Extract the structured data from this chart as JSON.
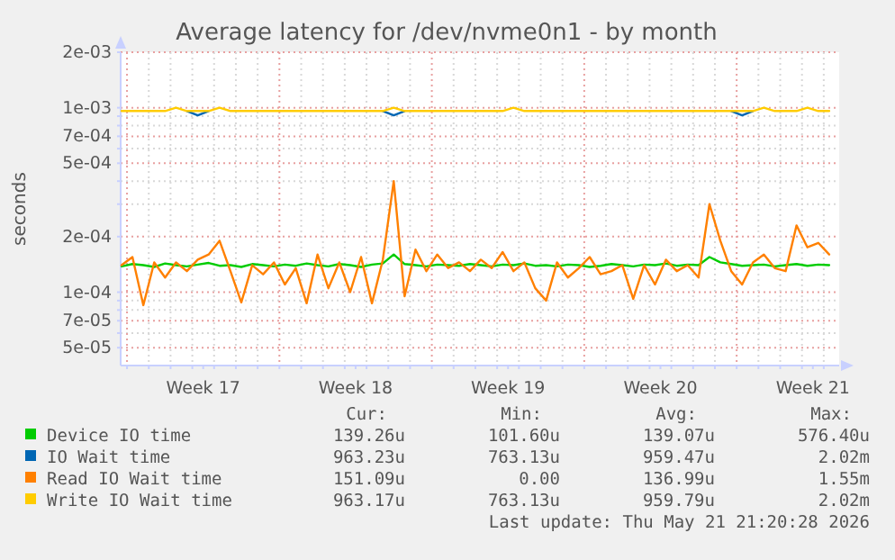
{
  "chart_data": {
    "type": "line",
    "title": "Average latency for /dev/nvme0n1 - by month",
    "ylabel": "seconds",
    "log": "y",
    "grid": true,
    "legend": "bottom",
    "marker": "none",
    "line_style": "solid",
    "xlim": [
      "2026-04-19T17:00",
      "2026-05-22T17:00"
    ],
    "ylim": [
      4e-05,
      0.002
    ],
    "yticks": [
      {
        "value": 0.002,
        "label": "2e-03"
      },
      {
        "value": 0.001,
        "label": "1e-03"
      },
      {
        "value": 0.0009,
        "label": null
      },
      {
        "value": 0.0008,
        "label": null
      },
      {
        "value": 0.0007,
        "label": "7e-04"
      },
      {
        "value": 0.0006,
        "label": null
      },
      {
        "value": 0.0005,
        "label": "5e-04"
      },
      {
        "value": 0.0004,
        "label": null
      },
      {
        "value": 0.0003,
        "label": null
      },
      {
        "value": 0.0002,
        "label": "2e-04"
      },
      {
        "value": 0.0001,
        "label": "1e-04"
      },
      {
        "value": 9e-05,
        "label": null
      },
      {
        "value": 8e-05,
        "label": null
      },
      {
        "value": 7e-05,
        "label": "7e-05"
      },
      {
        "value": 6e-05,
        "label": null
      },
      {
        "value": 5e-05,
        "label": "5e-05"
      }
    ],
    "xticks": [
      {
        "value": "2026-04-20",
        "label": null
      },
      {
        "value": "2026-04-21",
        "label": null
      },
      {
        "value": "2026-04-22",
        "label": null
      },
      {
        "value": "2026-04-23",
        "label": null
      },
      {
        "value": "2026-04-23T12:00",
        "label": "Week 17"
      },
      {
        "value": "2026-04-24",
        "label": null
      },
      {
        "value": "2026-04-25",
        "label": null
      },
      {
        "value": "2026-04-26",
        "label": null
      },
      {
        "value": "2026-04-27",
        "label": null
      },
      {
        "value": "2026-04-28",
        "label": null
      },
      {
        "value": "2026-04-29",
        "label": null
      },
      {
        "value": "2026-04-30",
        "label": null
      },
      {
        "value": "2026-04-30T12:00",
        "label": "Week 18"
      },
      {
        "value": "2026-05-01",
        "label": null
      },
      {
        "value": "2026-05-02",
        "label": null
      },
      {
        "value": "2026-05-03",
        "label": null
      },
      {
        "value": "2026-05-04",
        "label": null
      },
      {
        "value": "2026-05-05",
        "label": null
      },
      {
        "value": "2026-05-06",
        "label": null
      },
      {
        "value": "2026-05-07",
        "label": null
      },
      {
        "value": "2026-05-07T12:00",
        "label": "Week 19"
      },
      {
        "value": "2026-05-08",
        "label": null
      },
      {
        "value": "2026-05-09",
        "label": null
      },
      {
        "value": "2026-05-10",
        "label": null
      },
      {
        "value": "2026-05-11",
        "label": null
      },
      {
        "value": "2026-05-12",
        "label": null
      },
      {
        "value": "2026-05-13",
        "label": null
      },
      {
        "value": "2026-05-14",
        "label": null
      },
      {
        "value": "2026-05-14T12:00",
        "label": "Week 20"
      },
      {
        "value": "2026-05-15",
        "label": null
      },
      {
        "value": "2026-05-16",
        "label": null
      },
      {
        "value": "2026-05-17",
        "label": null
      },
      {
        "value": "2026-05-18",
        "label": null
      },
      {
        "value": "2026-05-19",
        "label": null
      },
      {
        "value": "2026-05-20",
        "label": null
      },
      {
        "value": "2026-05-21",
        "label": null
      },
      {
        "value": "2026-05-21T12:00",
        "label": "Week 21"
      },
      {
        "value": "2026-05-22",
        "label": null
      }
    ],
    "x": [
      "2026-04-19T18:00",
      "2026-04-20T06:00",
      "2026-04-20T18:00",
      "2026-04-21T06:00",
      "2026-04-21T18:00",
      "2026-04-22T06:00",
      "2026-04-22T18:00",
      "2026-04-23T06:00",
      "2026-04-23T18:00",
      "2026-04-24T06:00",
      "2026-04-24T18:00",
      "2026-04-25T06:00",
      "2026-04-25T18:00",
      "2026-04-26T06:00",
      "2026-04-26T18:00",
      "2026-04-27T06:00",
      "2026-04-27T18:00",
      "2026-04-28T06:00",
      "2026-04-28T18:00",
      "2026-04-29T06:00",
      "2026-04-29T18:00",
      "2026-04-30T06:00",
      "2026-04-30T18:00",
      "2026-05-01T06:00",
      "2026-05-01T18:00",
      "2026-05-02T06:00",
      "2026-05-02T18:00",
      "2026-05-03T06:00",
      "2026-05-03T18:00",
      "2026-05-04T06:00",
      "2026-05-04T18:00",
      "2026-05-05T06:00",
      "2026-05-05T18:00",
      "2026-05-06T06:00",
      "2026-05-06T18:00",
      "2026-05-07T06:00",
      "2026-05-07T18:00",
      "2026-05-08T06:00",
      "2026-05-08T18:00",
      "2026-05-09T06:00",
      "2026-05-09T18:00",
      "2026-05-10T06:00",
      "2026-05-10T18:00",
      "2026-05-11T06:00",
      "2026-05-11T18:00",
      "2026-05-12T06:00",
      "2026-05-12T18:00",
      "2026-05-13T06:00",
      "2026-05-13T18:00",
      "2026-05-14T06:00",
      "2026-05-14T18:00",
      "2026-05-15T06:00",
      "2026-05-15T18:00",
      "2026-05-16T06:00",
      "2026-05-16T18:00",
      "2026-05-17T06:00",
      "2026-05-17T18:00",
      "2026-05-18T06:00",
      "2026-05-18T18:00",
      "2026-05-19T06:00",
      "2026-05-19T18:00",
      "2026-05-20T06:00",
      "2026-05-20T18:00",
      "2026-05-21T06:00",
      "2026-05-21T18:00",
      "2026-05-22T06:00"
    ],
    "series": [
      {
        "name": "Device IO time",
        "color": "#00cc00",
        "values": [
          0.000138,
          0.000142,
          0.00014,
          0.000137,
          0.000143,
          0.00014,
          0.000138,
          0.000141,
          0.000144,
          0.000139,
          0.00014,
          0.000137,
          0.000142,
          0.00014,
          0.000138,
          0.000141,
          0.000139,
          0.000143,
          0.00014,
          0.000138,
          0.000142,
          0.00014,
          0.000137,
          0.000141,
          0.000143,
          0.00016,
          0.000142,
          0.00014,
          0.000138,
          0.000141,
          0.00014,
          0.000139,
          0.000142,
          0.00014,
          0.000138,
          0.000141,
          0.00014,
          0.000143,
          0.000139,
          0.00014,
          0.000138,
          0.000141,
          0.00014,
          0.000137,
          0.000139,
          0.000142,
          0.00014,
          0.000138,
          0.000141,
          0.00014,
          0.000143,
          0.000139,
          0.000141,
          0.00014,
          0.000155,
          0.000145,
          0.000142,
          0.000139,
          0.00014,
          0.000141,
          0.000138,
          0.00014,
          0.000142,
          0.000139,
          0.000141,
          0.00014
        ]
      },
      {
        "name": "IO Wait time",
        "color": "#0066b3",
        "values": [
          null,
          null,
          null,
          null,
          null,
          null,
          0.00096,
          0.00091,
          0.00096,
          null,
          null,
          null,
          null,
          null,
          null,
          null,
          null,
          null,
          null,
          null,
          null,
          null,
          null,
          null,
          0.00096,
          0.00091,
          0.00096,
          null,
          null,
          null,
          null,
          null,
          null,
          null,
          null,
          null,
          null,
          null,
          null,
          null,
          null,
          null,
          null,
          null,
          null,
          null,
          null,
          null,
          null,
          null,
          null,
          null,
          null,
          null,
          null,
          null,
          0.00096,
          0.00091,
          0.00096,
          null,
          null,
          null,
          null,
          null,
          null,
          null
        ]
      },
      {
        "name": "Read IO Wait time",
        "color": "#ff8000",
        "values": [
          0.00014,
          0.000155,
          8.5e-05,
          0.000145,
          0.00012,
          0.000145,
          0.00013,
          0.00015,
          0.00016,
          0.00019,
          0.00013,
          8.8e-05,
          0.00014,
          0.000125,
          0.000145,
          0.00011,
          0.000135,
          8.7e-05,
          0.00016,
          0.000105,
          0.000145,
          0.0001,
          0.000155,
          8.7e-05,
          0.00015,
          0.0004,
          9.5e-05,
          0.00017,
          0.00013,
          0.00016,
          0.000135,
          0.000145,
          0.00013,
          0.00015,
          0.000135,
          0.000165,
          0.00013,
          0.000145,
          0.000105,
          9e-05,
          0.000145,
          0.00012,
          0.000135,
          0.000155,
          0.000125,
          0.00013,
          0.00014,
          9.2e-05,
          0.00014,
          0.00011,
          0.00015,
          0.00013,
          0.00014,
          0.00012,
          0.0003,
          0.00019,
          0.00013,
          0.00011,
          0.000145,
          0.00016,
          0.000135,
          0.00013,
          0.00023,
          0.000175,
          0.000185,
          0.00016
        ]
      },
      {
        "name": "Write IO Wait time",
        "color": "#ffcc00",
        "values": [
          0.00096,
          0.00096,
          0.00096,
          0.00096,
          0.00096,
          0.001,
          0.00096,
          0.00096,
          0.00096,
          0.001,
          0.00096,
          0.00096,
          0.00096,
          0.00096,
          0.00096,
          0.00096,
          0.00096,
          0.00096,
          0.00096,
          0.00096,
          0.00096,
          0.00096,
          0.00096,
          0.00096,
          0.00096,
          0.001,
          0.00096,
          0.00096,
          0.00096,
          0.00096,
          0.00096,
          0.00096,
          0.00096,
          0.00096,
          0.00096,
          0.00096,
          0.001,
          0.00096,
          0.00096,
          0.00096,
          0.00096,
          0.00096,
          0.00096,
          0.00096,
          0.00096,
          0.00096,
          0.00096,
          0.00096,
          0.00096,
          0.00096,
          0.00096,
          0.00096,
          0.00096,
          0.00096,
          0.00096,
          0.00096,
          0.00096,
          0.00096,
          0.00096,
          0.001,
          0.00096,
          0.00096,
          0.00096,
          0.001,
          0.00096,
          0.00096
        ]
      }
    ],
    "annotations": [
      "Cur:",
      "Min:",
      "Avg:",
      "Max:",
      "139.26u",
      "101.60u",
      "139.07u",
      "576.40u",
      "963.23u",
      "763.13u",
      "959.47u",
      "2.02m",
      "151.09u",
      "0.00",
      "136.99u",
      "1.55m",
      "963.17u",
      "763.13u",
      "959.79u",
      "2.02m",
      "Last update: Thu May 21 21:20:28 2026"
    ]
  }
}
